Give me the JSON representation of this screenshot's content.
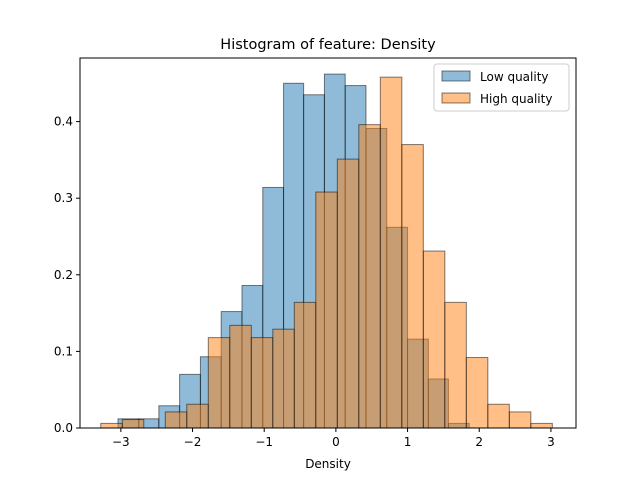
{
  "chart_data": {
    "type": "bar",
    "subtype": "overlaid-histogram",
    "title": "Histogram of feature: Density",
    "xlabel": "Density",
    "ylabel": "",
    "xlim": [
      -3.57,
      3.35
    ],
    "ylim": [
      0,
      0.483
    ],
    "xticks": [
      -3,
      -2,
      -1,
      0,
      1,
      2,
      3
    ],
    "xtick_labels": [
      "−3",
      "−2",
      "−1",
      "0",
      "1",
      "2",
      "3"
    ],
    "yticks": [
      0.0,
      0.1,
      0.2,
      0.3,
      0.4
    ],
    "ytick_labels": [
      "0.0",
      "0.1",
      "0.2",
      "0.3",
      "0.4"
    ],
    "grid": false,
    "legend_position": "top-right",
    "series": [
      {
        "name": "Low quality",
        "color": "#1f77b4",
        "bin_edges": [
          -3.04,
          -2.75,
          -2.47,
          -2.18,
          -1.89,
          -1.6,
          -1.31,
          -1.02,
          -0.73,
          -0.45,
          -0.16,
          0.13,
          0.42,
          0.71,
          1.0,
          1.29,
          1.57,
          1.86
        ],
        "values": [
          0.012,
          0.012,
          0.029,
          0.07,
          0.093,
          0.152,
          0.186,
          0.314,
          0.45,
          0.435,
          0.462,
          0.447,
          0.391,
          0.262,
          0.116,
          0.064,
          0.006
        ]
      },
      {
        "name": "High quality",
        "color": "#ff7f0e",
        "bin_edges": [
          -3.28,
          -2.98,
          -2.68,
          -2.38,
          -2.08,
          -1.78,
          -1.48,
          -1.18,
          -0.88,
          -0.58,
          -0.28,
          0.02,
          0.32,
          0.62,
          0.92,
          1.22,
          1.52,
          1.82,
          2.12,
          2.42,
          2.72,
          3.02
        ],
        "values": [
          0.006,
          0.011,
          0.0,
          0.021,
          0.031,
          0.118,
          0.134,
          0.118,
          0.129,
          0.164,
          0.308,
          0.351,
          0.396,
          0.458,
          0.37,
          0.231,
          0.164,
          0.092,
          0.031,
          0.021,
          0.006
        ]
      }
    ]
  }
}
